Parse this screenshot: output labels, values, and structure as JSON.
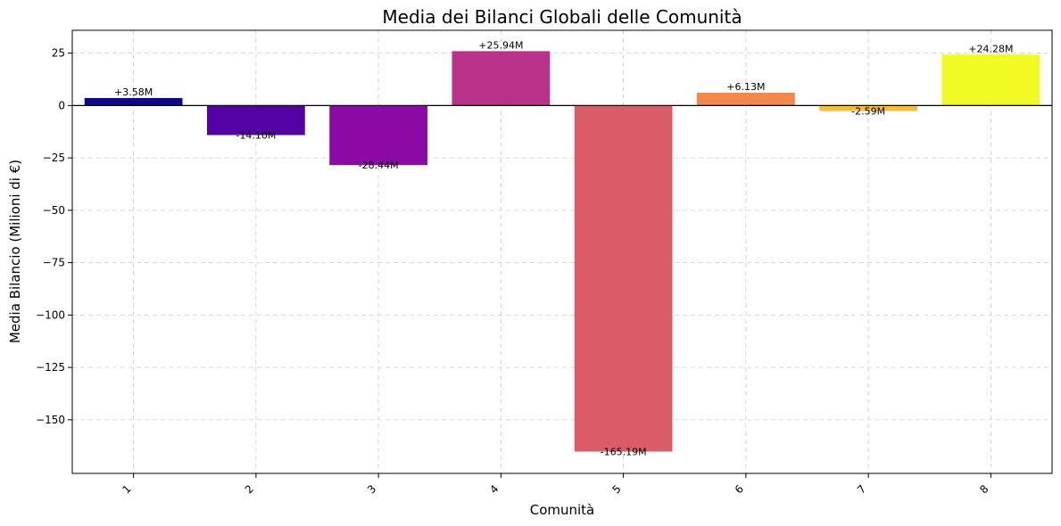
{
  "chart_data": {
    "type": "bar",
    "title": "Media dei Bilanci Globali delle Comunità",
    "xlabel": "Comunità",
    "ylabel": "Media Bilancio (Milioni di €)",
    "categories": [
      "1",
      "2",
      "3",
      "4",
      "5",
      "6",
      "7",
      "8"
    ],
    "values": [
      3.58,
      -14.1,
      -28.44,
      25.94,
      -165.19,
      6.13,
      -2.59,
      24.28
    ],
    "value_labels": [
      "+3.58M",
      "-14.10M",
      "-28.44M",
      "+25.94M",
      "-165.19M",
      "+6.13M",
      "-2.59M",
      "+24.28M"
    ],
    "colors": [
      "#0d0887",
      "#5302a3",
      "#8b0aa5",
      "#b83289",
      "#db5c68",
      "#f48849",
      "#febc2a",
      "#f0f921"
    ],
    "ylim": [
      -175.6,
      35.9
    ],
    "yticks": [
      25,
      0,
      -25,
      -50,
      -75,
      -100,
      -125,
      -150
    ],
    "ytick_labels": [
      "25",
      "0",
      "−25",
      "−50",
      "−75",
      "−100",
      "−125",
      "−150"
    ],
    "grid": true,
    "zero_line": true
  }
}
